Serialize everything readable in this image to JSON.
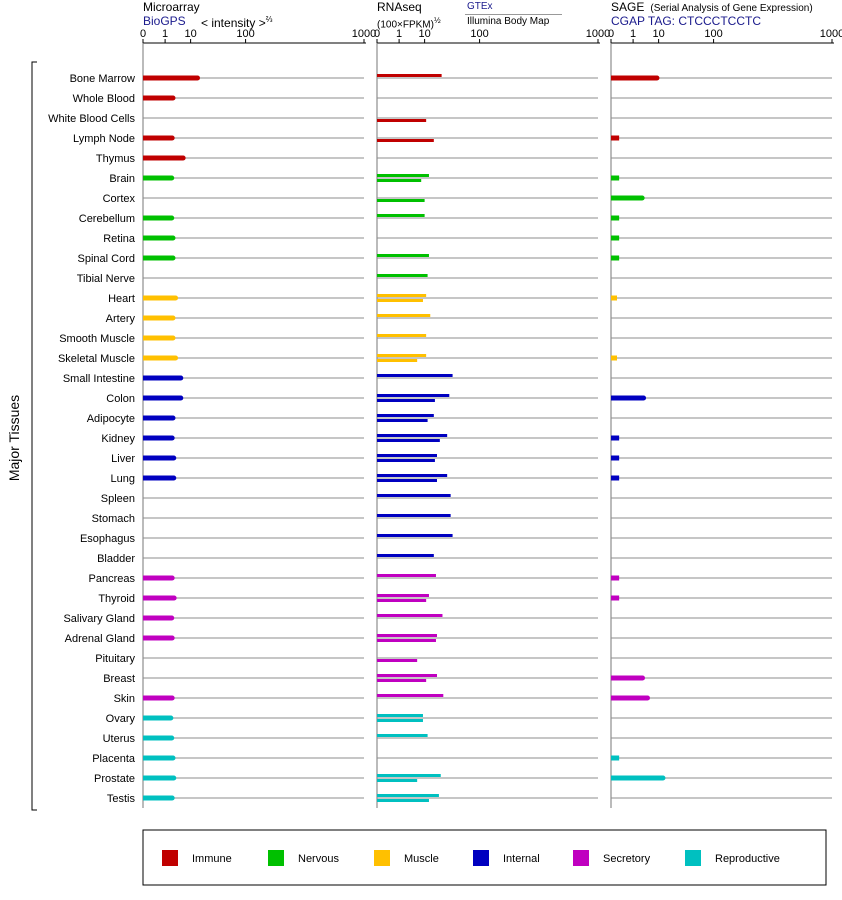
{
  "panels": [
    {
      "title": "Microarray",
      "source": "BioGPS",
      "scale": "< intensity >",
      "scale_exp": "⅔"
    },
    {
      "title": "RNAseq",
      "scale": "(100×FPKM)",
      "scale_exp": "½",
      "source_a": "GTEx",
      "source_b": "Illumina Body Map"
    },
    {
      "title": "SAGE",
      "subtitle": "(Serial Analysis of Gene Expression)",
      "tag": "CGAP TAG: CTCCCTCCTC"
    }
  ],
  "group_label": "Major Tissues",
  "legend": [
    {
      "name": "Immune",
      "color": "#c00000"
    },
    {
      "name": "Nervous",
      "color": "#00c000"
    },
    {
      "name": "Muscle",
      "color": "#ffc000"
    },
    {
      "name": "Internal",
      "color": "#0000c0"
    },
    {
      "name": "Secretory",
      "color": "#c000c0"
    },
    {
      "name": "Reproductive",
      "color": "#00c0c0"
    }
  ],
  "chart_data": {
    "type": "bar",
    "tick_labels": [
      "0",
      "1",
      "10",
      "100",
      "1000"
    ],
    "xlim": [
      0,
      1000
    ],
    "categories": [
      "Bone Marrow",
      "Whole Blood",
      "White Blood Cells",
      "Lymph Node",
      "Thymus",
      "Brain",
      "Cortex",
      "Cerebellum",
      "Retina",
      "Spinal Cord",
      "Tibial Nerve",
      "Heart",
      "Artery",
      "Smooth Muscle",
      "Skeletal Muscle",
      "Small Intestine",
      "Colon",
      "Adipocyte",
      "Kidney",
      "Liver",
      "Lung",
      "Spleen",
      "Stomach",
      "Esophagus",
      "Bladder",
      "Pancreas",
      "Thyroid",
      "Salivary Gland",
      "Adrenal Gland",
      "Pituitary",
      "Breast",
      "Skin",
      "Ovary",
      "Uterus",
      "Placenta",
      "Prostate",
      "Testis"
    ],
    "systems": [
      "Immune",
      "Immune",
      "Immune",
      "Immune",
      "Immune",
      "Nervous",
      "Nervous",
      "Nervous",
      "Nervous",
      "Nervous",
      "Nervous",
      "Muscle",
      "Muscle",
      "Muscle",
      "Muscle",
      "Internal",
      "Internal",
      "Internal",
      "Internal",
      "Internal",
      "Internal",
      "Internal",
      "Internal",
      "Internal",
      "Internal",
      "Secretory",
      "Secretory",
      "Secretory",
      "Secretory",
      "Secretory",
      "Secretory",
      "Secretory",
      "Reproductive",
      "Reproductive",
      "Reproductive",
      "Reproductive",
      "Reproductive"
    ],
    "series": [
      {
        "name": "Microarray",
        "values": [
          15,
          2.5,
          null,
          2.3,
          6,
          2.2,
          null,
          2.2,
          2.5,
          2.5,
          null,
          3.2,
          2.5,
          2.5,
          3.2,
          5,
          5,
          2.5,
          2.3,
          2.7,
          2.7,
          null,
          null,
          null,
          null,
          2.3,
          2.8,
          2.2,
          2.3,
          null,
          null,
          2.3,
          2,
          2.2,
          2.5,
          2.7,
          2.3
        ]
      },
      {
        "name": "RNAseq GTEx",
        "values": [
          25,
          null,
          null,
          null,
          null,
          13,
          null,
          10,
          null,
          13,
          12,
          11,
          14,
          11,
          11,
          40,
          35,
          17,
          32,
          20,
          32,
          37,
          37,
          40,
          17,
          19,
          13,
          26,
          20,
          null,
          20,
          27,
          9,
          12,
          null,
          24,
          22
        ]
      },
      {
        "name": "RNAseq Illumina Body Map",
        "values": [
          null,
          null,
          11,
          17,
          null,
          8,
          10,
          null,
          null,
          null,
          null,
          9,
          null,
          null,
          6,
          null,
          18,
          12,
          23,
          18,
          20,
          null,
          null,
          null,
          null,
          null,
          11,
          null,
          19,
          6,
          11,
          null,
          9,
          null,
          null,
          6,
          13
        ]
      },
      {
        "name": "SAGE",
        "values": [
          9,
          null,
          null,
          0.05,
          null,
          0.05,
          2.8,
          0.05,
          0.05,
          0.05,
          null,
          0.02,
          null,
          null,
          0.02,
          null,
          3.2,
          null,
          0.05,
          0.05,
          0.05,
          null,
          null,
          null,
          null,
          0.05,
          0.05,
          null,
          null,
          null,
          2.9,
          4.5,
          null,
          null,
          0.05,
          13,
          null
        ]
      }
    ]
  }
}
